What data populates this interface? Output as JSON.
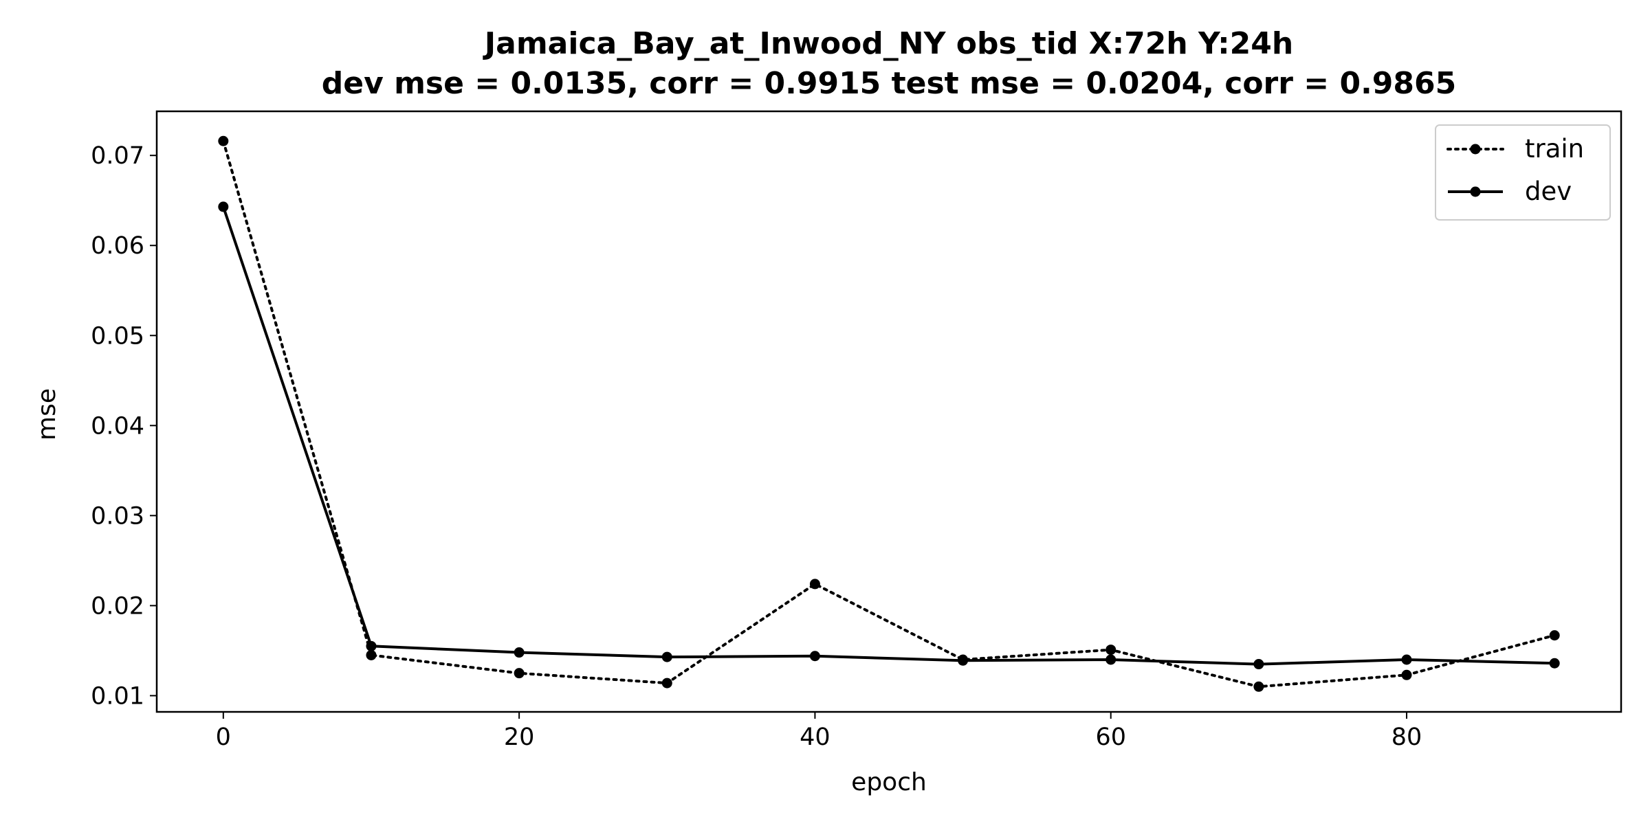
{
  "chart_data": {
    "type": "line",
    "title_line1": "Jamaica_Bay_at_Inwood_NY   obs_tid   X:72h   Y:24h",
    "title_line2": "dev mse = 0.0135, corr = 0.9915   test mse = 0.0204, corr = 0.9865",
    "xlabel": "epoch",
    "ylabel": "mse",
    "xlim": [
      -4.5,
      94.5
    ],
    "ylim": [
      0.0082,
      0.0749
    ],
    "xticks": [
      0,
      20,
      40,
      60,
      80
    ],
    "xtick_labels": [
      "0",
      "20",
      "40",
      "60",
      "80"
    ],
    "yticks": [
      0.01,
      0.02,
      0.03,
      0.04,
      0.05,
      0.06,
      0.07
    ],
    "ytick_labels": [
      "0.01",
      "0.02",
      "0.03",
      "0.04",
      "0.05",
      "0.06",
      "0.07"
    ],
    "grid": false,
    "legend_position": "top-right",
    "x": [
      0,
      10,
      20,
      30,
      40,
      50,
      60,
      70,
      80,
      90
    ],
    "series": [
      {
        "name": "train",
        "style": "dotted",
        "color": "#000000",
        "values": [
          0.0716,
          0.0145,
          0.0125,
          0.0114,
          0.0224,
          0.014,
          0.0151,
          0.011,
          0.0123,
          0.0167
        ]
      },
      {
        "name": "dev",
        "style": "solid",
        "color": "#000000",
        "values": [
          0.0643,
          0.0155,
          0.0148,
          0.0143,
          0.0144,
          0.0139,
          0.014,
          0.0135,
          0.014,
          0.0136
        ]
      }
    ]
  }
}
